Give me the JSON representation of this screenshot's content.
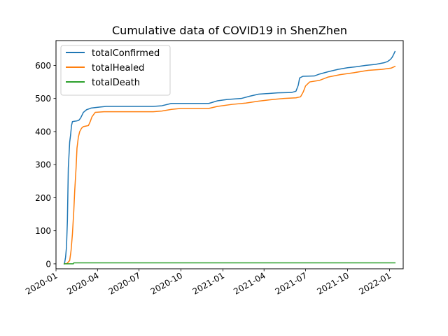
{
  "chart_data": {
    "type": "line",
    "title": "Cumulative data of COVID19 in ShenZhen",
    "xlabel": "",
    "ylabel": "",
    "x_axis_type": "date",
    "xlim": [
      "2020-01-01",
      "2022-01-31"
    ],
    "ylim": [
      -15,
      675
    ],
    "x_ticks": [
      "2020-01",
      "2020-04",
      "2020-07",
      "2020-10",
      "2021-01",
      "2021-04",
      "2021-07",
      "2021-10",
      "2022-01"
    ],
    "x_tick_dates": [
      "2020-01-01",
      "2020-04-01",
      "2020-07-01",
      "2020-10-01",
      "2021-01-01",
      "2021-04-01",
      "2021-07-01",
      "2021-10-01",
      "2022-01-01"
    ],
    "y_ticks": [
      0,
      100,
      200,
      300,
      400,
      500,
      600
    ],
    "grid": false,
    "legend_position": "upper-left",
    "series": [
      {
        "name": "totalConfirmed",
        "color": "#1f77b4",
        "points": [
          [
            "2020-01-19",
            0
          ],
          [
            "2020-01-20",
            4
          ],
          [
            "2020-01-22",
            20
          ],
          [
            "2020-01-24",
            51
          ],
          [
            "2020-01-26",
            130
          ],
          [
            "2020-01-28",
            290
          ],
          [
            "2020-01-31",
            368
          ],
          [
            "2020-02-02",
            390
          ],
          [
            "2020-02-04",
            418
          ],
          [
            "2020-02-06",
            430
          ],
          [
            "2020-02-10",
            431
          ],
          [
            "2020-02-15",
            432
          ],
          [
            "2020-02-20",
            434
          ],
          [
            "2020-02-24",
            441
          ],
          [
            "2020-03-01",
            458
          ],
          [
            "2020-03-08",
            466
          ],
          [
            "2020-03-18",
            471
          ],
          [
            "2020-04-05",
            474
          ],
          [
            "2020-04-20",
            476
          ],
          [
            "2020-06-01",
            476
          ],
          [
            "2020-08-01",
            476
          ],
          [
            "2020-08-20",
            478
          ],
          [
            "2020-09-10",
            485
          ],
          [
            "2020-11-01",
            485
          ],
          [
            "2020-12-01",
            485
          ],
          [
            "2020-12-20",
            493
          ],
          [
            "2021-01-10",
            497
          ],
          [
            "2021-02-10",
            500
          ],
          [
            "2021-03-01",
            507
          ],
          [
            "2021-03-20",
            513
          ],
          [
            "2021-05-01",
            517
          ],
          [
            "2021-05-31",
            518
          ],
          [
            "2021-06-10",
            522
          ],
          [
            "2021-06-15",
            540
          ],
          [
            "2021-06-18",
            562
          ],
          [
            "2021-06-25",
            567
          ],
          [
            "2021-07-20",
            568
          ],
          [
            "2021-08-01",
            574
          ],
          [
            "2021-08-20",
            581
          ],
          [
            "2021-09-10",
            588
          ],
          [
            "2021-10-01",
            593
          ],
          [
            "2021-10-20",
            596
          ],
          [
            "2021-11-10",
            600
          ],
          [
            "2021-12-01",
            603
          ],
          [
            "2021-12-20",
            608
          ],
          [
            "2021-12-28",
            612
          ],
          [
            "2022-01-03",
            618
          ],
          [
            "2022-01-07",
            625
          ],
          [
            "2022-01-10",
            633
          ],
          [
            "2022-01-13",
            642
          ]
        ]
      },
      {
        "name": "totalHealed",
        "color": "#ff7f0e",
        "points": [
          [
            "2020-01-19",
            0
          ],
          [
            "2020-01-25",
            1
          ],
          [
            "2020-01-31",
            10
          ],
          [
            "2020-02-03",
            40
          ],
          [
            "2020-02-06",
            90
          ],
          [
            "2020-02-09",
            160
          ],
          [
            "2020-02-11",
            220
          ],
          [
            "2020-02-14",
            290
          ],
          [
            "2020-02-16",
            350
          ],
          [
            "2020-02-19",
            383
          ],
          [
            "2020-02-22",
            400
          ],
          [
            "2020-02-26",
            410
          ],
          [
            "2020-03-01",
            415
          ],
          [
            "2020-03-12",
            418
          ],
          [
            "2020-03-16",
            430
          ],
          [
            "2020-03-20",
            445
          ],
          [
            "2020-03-27",
            458
          ],
          [
            "2020-04-15",
            460
          ],
          [
            "2020-05-01",
            460
          ],
          [
            "2020-06-01",
            460
          ],
          [
            "2020-07-01",
            460
          ],
          [
            "2020-08-01",
            460
          ],
          [
            "2020-08-20",
            462
          ],
          [
            "2020-09-10",
            467
          ],
          [
            "2020-10-01",
            470
          ],
          [
            "2020-11-01",
            470
          ],
          [
            "2020-12-01",
            470
          ],
          [
            "2020-12-20",
            476
          ],
          [
            "2021-01-20",
            482
          ],
          [
            "2021-02-20",
            486
          ],
          [
            "2021-03-20",
            492
          ],
          [
            "2021-04-20",
            497
          ],
          [
            "2021-05-15",
            500
          ],
          [
            "2021-06-10",
            502
          ],
          [
            "2021-06-20",
            505
          ],
          [
            "2021-06-26",
            520
          ],
          [
            "2021-07-01",
            538
          ],
          [
            "2021-07-10",
            550
          ],
          [
            "2021-08-01",
            555
          ],
          [
            "2021-08-20",
            565
          ],
          [
            "2021-09-15",
            572
          ],
          [
            "2021-10-15",
            578
          ],
          [
            "2021-11-15",
            585
          ],
          [
            "2021-12-15",
            588
          ],
          [
            "2022-01-05",
            592
          ],
          [
            "2022-01-13",
            597
          ]
        ]
      },
      {
        "name": "totalDeath",
        "color": "#2ca02c",
        "points": [
          [
            "2020-01-19",
            0
          ],
          [
            "2020-02-08",
            0
          ],
          [
            "2020-02-09",
            3
          ],
          [
            "2022-01-13",
            3
          ]
        ]
      }
    ]
  }
}
